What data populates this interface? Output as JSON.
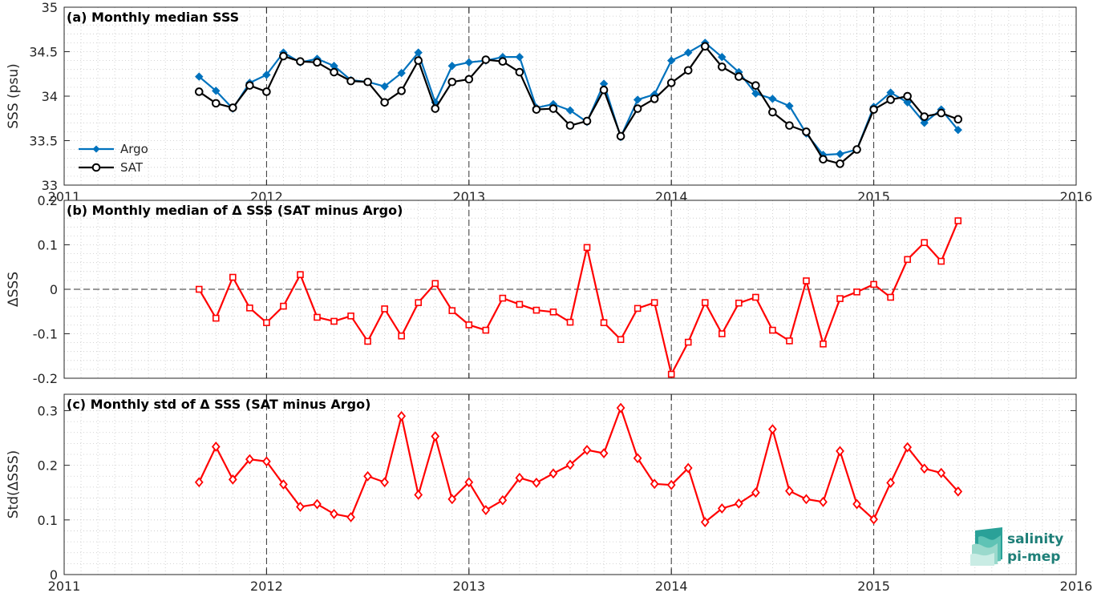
{
  "chart_data": [
    {
      "type": "line",
      "title": "(a) Monthly median SSS",
      "xlabel": "",
      "ylabel": "SSS (psu)",
      "xlim": [
        2011,
        2016
      ],
      "ylim": [
        33,
        35
      ],
      "x_ticks": [
        "2011",
        "2012",
        "2013",
        "2014",
        "2015",
        "2016"
      ],
      "y_ticks": [
        "33",
        "33.5",
        "34",
        "34.5",
        "35"
      ],
      "grid": "minor-dotted",
      "legend": "left",
      "x": [
        "2011-09",
        "2011-10",
        "2011-11",
        "2011-12",
        "2012-01",
        "2012-02",
        "2012-03",
        "2012-04",
        "2012-05",
        "2012-06",
        "2012-07",
        "2012-08",
        "2012-09",
        "2012-10",
        "2012-11",
        "2012-12",
        "2013-01",
        "2013-02",
        "2013-03",
        "2013-04",
        "2013-05",
        "2013-06",
        "2013-07",
        "2013-08",
        "2013-09",
        "2013-10",
        "2013-11",
        "2013-12",
        "2014-01",
        "2014-02",
        "2014-03",
        "2014-04",
        "2014-05",
        "2014-06",
        "2014-07",
        "2014-08",
        "2014-09",
        "2014-10",
        "2014-11",
        "2014-12",
        "2015-01",
        "2015-02",
        "2015-03",
        "2015-04",
        "2015-05",
        "2015-06"
      ],
      "series": [
        {
          "name": "Argo",
          "color": "#0072bd",
          "marker": "filled-diamond",
          "values": [
            34.22,
            34.06,
            33.86,
            34.15,
            34.24,
            34.49,
            34.38,
            34.42,
            34.34,
            34.18,
            34.16,
            34.11,
            34.26,
            34.49,
            33.93,
            34.34,
            34.38,
            34.4,
            34.44,
            34.44,
            33.87,
            33.91,
            33.84,
            33.71,
            34.14,
            33.54,
            33.96,
            34.02,
            34.4,
            34.49,
            34.6,
            34.44,
            34.27,
            34.03,
            33.97,
            33.89,
            33.58,
            33.34,
            33.35,
            33.4,
            33.88,
            34.04,
            33.93,
            33.7,
            33.85,
            33.62
          ]
        },
        {
          "name": "SAT",
          "color": "#000000",
          "marker": "open-circle",
          "values": [
            34.05,
            33.92,
            33.87,
            34.12,
            34.05,
            34.45,
            34.39,
            34.38,
            34.27,
            34.17,
            34.16,
            33.93,
            34.06,
            34.4,
            33.86,
            34.16,
            34.19,
            34.41,
            34.39,
            34.27,
            33.85,
            33.86,
            33.67,
            33.72,
            34.07,
            33.55,
            33.86,
            33.97,
            34.15,
            34.29,
            34.56,
            34.33,
            34.22,
            34.12,
            33.82,
            33.67,
            33.6,
            33.29,
            33.24,
            33.4,
            33.85,
            33.96,
            34.0,
            33.77,
            33.81,
            33.74
          ]
        }
      ]
    },
    {
      "type": "line",
      "title": "(b) Monthly median of Δ SSS (SAT minus Argo)",
      "xlabel": "",
      "ylabel": "ΔSSS",
      "xlim": [
        2011,
        2016
      ],
      "ylim": [
        -0.2,
        0.2
      ],
      "x_ticks": [],
      "y_ticks": [
        "-0.2",
        "-0.1",
        "0",
        "0.1",
        "0.2"
      ],
      "grid": "minor-dotted",
      "reference_line": 0,
      "x": [
        "2011-09",
        "2011-10",
        "2011-11",
        "2011-12",
        "2012-01",
        "2012-02",
        "2012-03",
        "2012-04",
        "2012-05",
        "2012-06",
        "2012-07",
        "2012-08",
        "2012-09",
        "2012-10",
        "2012-11",
        "2012-12",
        "2013-01",
        "2013-02",
        "2013-03",
        "2013-04",
        "2013-05",
        "2013-06",
        "2013-07",
        "2013-08",
        "2013-09",
        "2013-10",
        "2013-11",
        "2013-12",
        "2014-01",
        "2014-02",
        "2014-03",
        "2014-04",
        "2014-05",
        "2014-06",
        "2014-07",
        "2014-08",
        "2014-09",
        "2014-10",
        "2014-11",
        "2014-12",
        "2015-01",
        "2015-02",
        "2015-03",
        "2015-04",
        "2015-05",
        "2015-06"
      ],
      "series": [
        {
          "color": "#ff0000",
          "marker": "open-square",
          "values": [
            0.0,
            -0.065,
            0.027,
            -0.042,
            -0.075,
            -0.038,
            0.033,
            -0.063,
            -0.072,
            -0.06,
            -0.117,
            -0.044,
            -0.105,
            -0.03,
            0.013,
            -0.048,
            -0.08,
            -0.092,
            -0.02,
            -0.034,
            -0.047,
            -0.051,
            -0.074,
            0.094,
            -0.075,
            -0.113,
            -0.043,
            -0.03,
            -0.191,
            -0.119,
            -0.03,
            -0.1,
            -0.031,
            -0.018,
            -0.092,
            -0.116,
            0.019,
            -0.123,
            -0.021,
            -0.006,
            0.011,
            -0.018,
            0.067,
            0.105,
            0.063,
            0.154
          ]
        }
      ]
    },
    {
      "type": "line",
      "title": "(c) Monthly std of Δ SSS (SAT minus Argo)",
      "xlabel": "",
      "ylabel": "Std(ΔSSS)",
      "xlim": [
        2011,
        2016
      ],
      "ylim": [
        0,
        0.33
      ],
      "x_ticks": [
        "2011",
        "2012",
        "2013",
        "2014",
        "2015",
        "2016"
      ],
      "y_ticks": [
        "0",
        "0.1",
        "0.2",
        "0.3"
      ],
      "grid": "minor-dotted",
      "x": [
        "2011-09",
        "2011-10",
        "2011-11",
        "2011-12",
        "2012-01",
        "2012-02",
        "2012-03",
        "2012-04",
        "2012-05",
        "2012-06",
        "2012-07",
        "2012-08",
        "2012-09",
        "2012-10",
        "2012-11",
        "2012-12",
        "2013-01",
        "2013-02",
        "2013-03",
        "2013-04",
        "2013-05",
        "2013-06",
        "2013-07",
        "2013-08",
        "2013-09",
        "2013-10",
        "2013-11",
        "2013-12",
        "2014-01",
        "2014-02",
        "2014-03",
        "2014-04",
        "2014-05",
        "2014-06",
        "2014-07",
        "2014-08",
        "2014-09",
        "2014-10",
        "2014-11",
        "2014-12",
        "2015-01",
        "2015-02",
        "2015-03",
        "2015-04",
        "2015-05",
        "2015-06"
      ],
      "series": [
        {
          "color": "#ff0000",
          "marker": "open-diamond",
          "values": [
            0.169,
            0.234,
            0.174,
            0.211,
            0.207,
            0.165,
            0.124,
            0.129,
            0.111,
            0.105,
            0.18,
            0.169,
            0.29,
            0.146,
            0.253,
            0.138,
            0.169,
            0.118,
            0.136,
            0.177,
            0.168,
            0.185,
            0.201,
            0.228,
            0.222,
            0.305,
            0.213,
            0.166,
            0.164,
            0.195,
            0.096,
            0.121,
            0.13,
            0.15,
            0.266,
            0.153,
            0.138,
            0.133,
            0.226,
            0.129,
            0.101,
            0.168,
            0.233,
            0.194,
            0.186,
            0.152
          ]
        }
      ]
    }
  ],
  "logo": {
    "line1": "salinity",
    "line2": "pi-mep",
    "color": "#1e7f78"
  }
}
